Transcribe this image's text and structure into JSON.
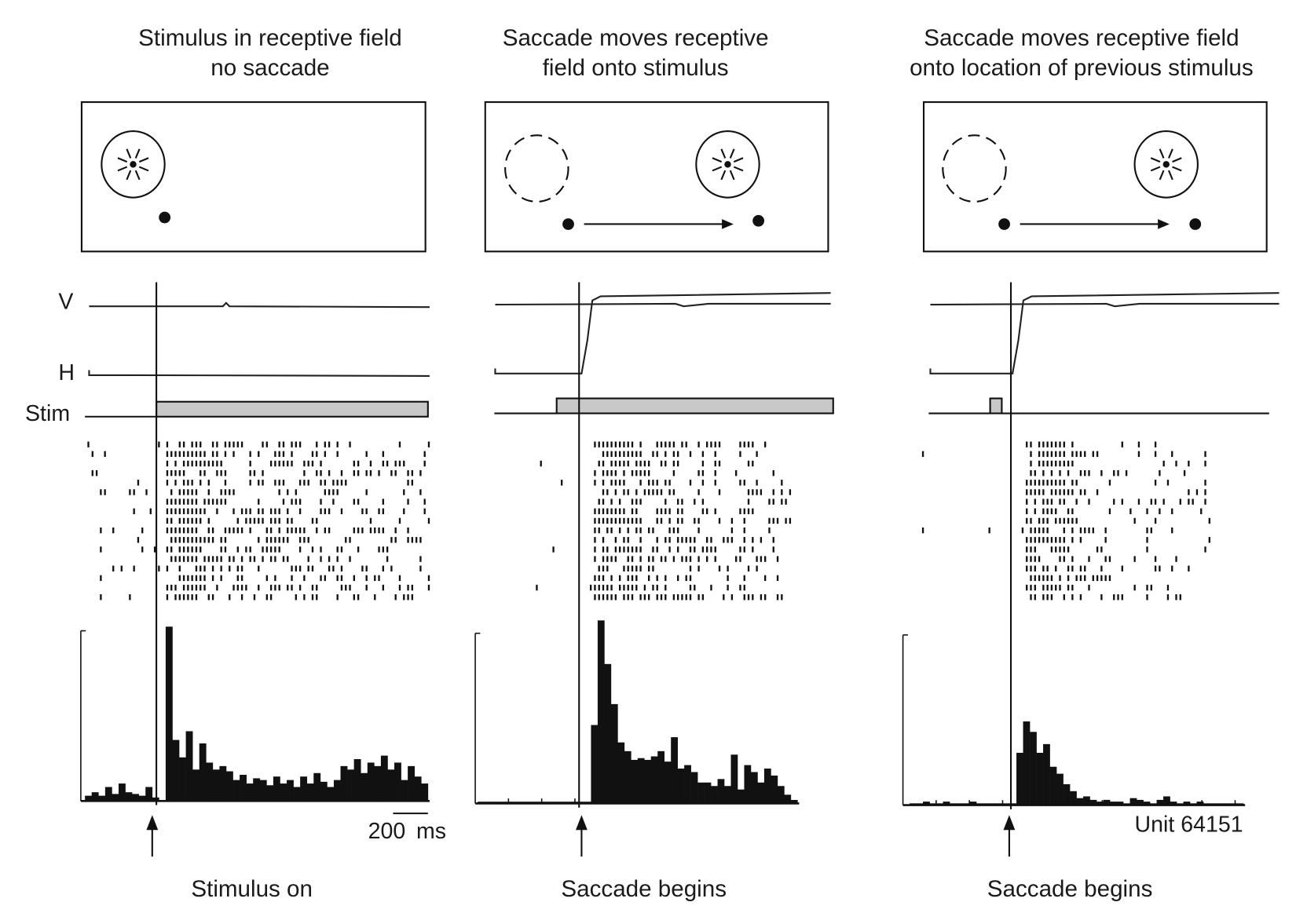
{
  "panels": [
    {
      "title": [
        "Stimulus in receptive field",
        "no saccade"
      ],
      "event_label": "Stimulus on",
      "histogram": [
        3,
        5,
        3,
        8,
        4,
        10,
        5,
        4,
        3,
        8,
        2,
        0,
        100,
        35,
        25,
        40,
        18,
        33,
        22,
        18,
        20,
        17,
        12,
        15,
        10,
        13,
        12,
        9,
        14,
        10,
        12,
        8,
        14,
        10,
        16,
        11,
        8,
        12,
        20,
        18,
        24,
        16,
        22,
        20,
        26,
        18,
        22,
        12,
        20,
        14,
        10
      ]
    },
    {
      "title": [
        "Saccade moves receptive",
        "field onto stimulus"
      ],
      "event_label": "Saccade begins",
      "histogram": [
        1,
        1,
        1,
        1,
        1,
        1,
        1,
        1,
        1,
        1,
        1,
        1,
        1,
        1,
        1,
        1,
        1,
        45,
        105,
        80,
        57,
        35,
        30,
        25,
        26,
        25,
        27,
        30,
        24,
        38,
        20,
        22,
        18,
        12,
        12,
        10,
        14,
        10,
        28,
        8,
        22,
        18,
        12,
        20,
        16,
        10,
        5,
        2
      ]
    },
    {
      "title": [
        "Saccade moves receptive field",
        "onto location of previous stimulus"
      ],
      "event_label": "Saccade begins",
      "histogram": [
        1,
        1,
        2,
        1,
        1,
        2,
        1,
        1,
        1,
        2,
        1,
        1,
        1,
        1,
        1,
        1,
        30,
        48,
        42,
        30,
        35,
        22,
        18,
        12,
        8,
        4,
        5,
        3,
        2,
        3,
        2,
        2,
        1,
        4,
        3,
        2,
        1,
        3,
        5,
        2,
        1,
        2,
        1,
        2,
        1,
        1,
        1,
        1,
        1,
        1
      ]
    }
  ],
  "trace_labels": {
    "v": "V",
    "h": "H",
    "stim": "Stim"
  },
  "scale_bar": {
    "value": "200",
    "unit": "ms"
  },
  "unit_label": "Unit 64151"
}
